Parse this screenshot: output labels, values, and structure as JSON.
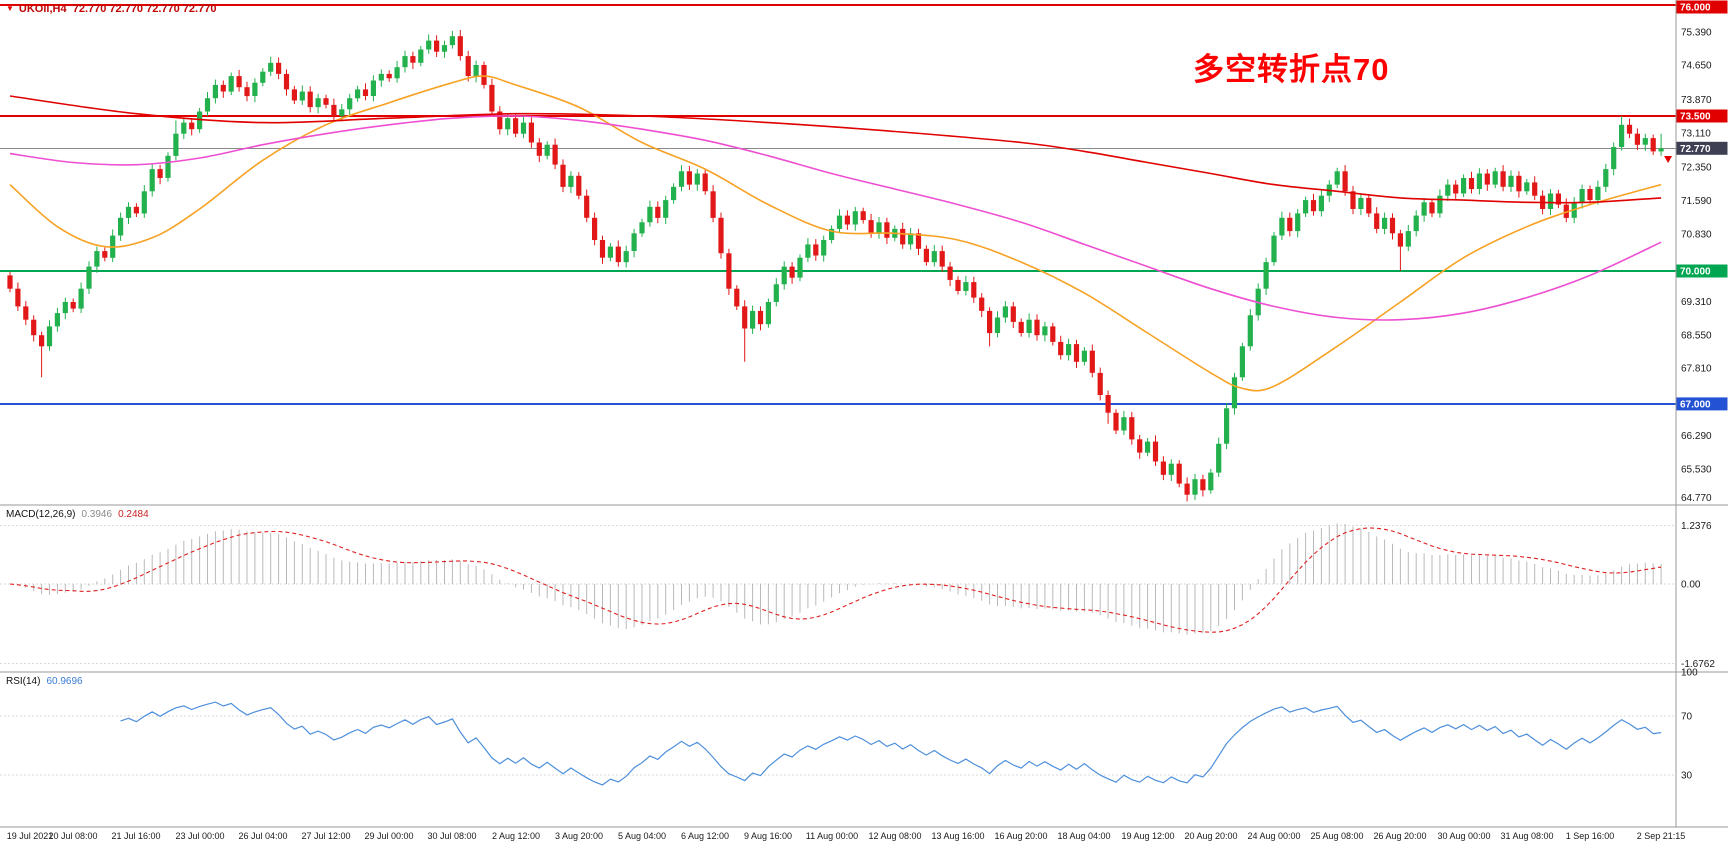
{
  "window": {
    "symbol_line": "UKOil,H4  72.770 72.770 72.770 72.770",
    "annotation": "多空转折点70"
  },
  "chart_data": {
    "type": "candlestick",
    "symbol": "UKOil",
    "timeframe": "H4",
    "current_price": 72.77,
    "first_open": 69.9,
    "candle_up_color": "#22b14c",
    "candle_down_color": "#e21818",
    "x_labels": [
      "19 Jul 2021",
      "20 Jul 08:00",
      "21 Jul 16:00",
      "23 Jul 00:00",
      "26 Jul 04:00",
      "27 Jul 12:00",
      "29 Jul 00:00",
      "30 Jul 08:00",
      "2 Aug 12:00",
      "3 Aug 20:00",
      "5 Aug 04:00",
      "6 Aug 12:00",
      "9 Aug 16:00",
      "11 Aug 00:00",
      "12 Aug 08:00",
      "13 Aug 16:00",
      "16 Aug 20:00",
      "18 Aug 04:00",
      "19 Aug 12:00",
      "20 Aug 20:00",
      "24 Aug 00:00",
      "25 Aug 08:00",
      "26 Aug 20:00",
      "30 Aug 00:00",
      "31 Aug 08:00",
      "1 Sep 16:00",
      "2 Sep 21:15"
    ],
    "label_every": 8,
    "closes": [
      69.6,
      69.2,
      68.9,
      68.55,
      68.3,
      68.75,
      69.05,
      69.3,
      69.15,
      69.6,
      70.1,
      70.45,
      70.3,
      70.8,
      71.2,
      71.45,
      71.3,
      71.8,
      72.3,
      72.1,
      72.6,
      73.1,
      73.35,
      73.2,
      73.6,
      73.9,
      74.2,
      74.05,
      74.4,
      74.15,
      73.95,
      74.25,
      74.5,
      74.7,
      74.45,
      74.1,
      73.85,
      74.05,
      73.7,
      73.9,
      73.75,
      73.5,
      73.65,
      73.9,
      74.1,
      73.95,
      74.3,
      74.45,
      74.35,
      74.6,
      74.85,
      74.7,
      75.0,
      75.2,
      74.95,
      75.1,
      75.3,
      74.85,
      74.4,
      74.65,
      74.2,
      73.6,
      73.2,
      73.45,
      73.1,
      73.35,
      72.9,
      72.6,
      72.85,
      72.4,
      71.9,
      72.15,
      71.7,
      71.2,
      70.7,
      70.3,
      70.55,
      70.2,
      70.45,
      70.85,
      71.1,
      71.45,
      71.2,
      71.6,
      71.9,
      72.25,
      71.95,
      72.2,
      71.8,
      71.2,
      70.4,
      69.6,
      69.2,
      68.7,
      69.1,
      68.8,
      69.3,
      69.7,
      70.1,
      69.85,
      70.3,
      70.6,
      70.35,
      70.7,
      70.95,
      71.25,
      71.05,
      71.35,
      71.15,
      70.85,
      71.1,
      70.75,
      70.95,
      70.6,
      70.85,
      70.5,
      70.2,
      70.45,
      70.1,
      69.8,
      69.55,
      69.75,
      69.4,
      69.1,
      68.6,
      68.95,
      69.2,
      68.85,
      68.6,
      68.9,
      68.55,
      68.75,
      68.4,
      68.1,
      68.35,
      67.95,
      68.2,
      67.7,
      67.2,
      66.8,
      66.4,
      66.7,
      66.2,
      65.9,
      66.15,
      65.7,
      65.4,
      65.65,
      65.2,
      64.95,
      65.3,
      65.05,
      65.45,
      66.1,
      66.9,
      67.6,
      68.3,
      69.0,
      69.6,
      70.2,
      70.8,
      71.2,
      70.9,
      71.3,
      71.6,
      71.35,
      71.7,
      71.95,
      72.25,
      71.8,
      71.4,
      71.65,
      71.3,
      70.95,
      71.2,
      70.85,
      70.55,
      70.9,
      71.25,
      71.55,
      71.3,
      71.7,
      71.95,
      71.75,
      72.1,
      71.85,
      72.2,
      71.95,
      72.25,
      71.9,
      72.15,
      71.8,
      72.0,
      71.7,
      71.4,
      71.75,
      71.5,
      71.2,
      71.55,
      71.85,
      71.6,
      71.9,
      72.3,
      72.8,
      73.3,
      73.1,
      72.85,
      73.0,
      72.7,
      72.77
    ],
    "wick_overrides": {
      "4": {
        "low": 67.6
      },
      "21": {
        "high": 73.4
      },
      "56": {
        "high": 75.42
      },
      "93": {
        "low": 67.95
      },
      "124": {
        "low": 68.3
      },
      "139": {
        "low": 66.55
      },
      "149": {
        "low": 64.8
      },
      "176": {
        "low": 70.0
      },
      "204": {
        "high": 73.5
      },
      "209": {
        "high": 73.1
      }
    },
    "levels": [
      {
        "label": "76.000",
        "price": 76.0,
        "color": "#e00000"
      },
      {
        "label": "73.500",
        "price": 73.5,
        "color": "#e00000"
      },
      {
        "label": "70.000",
        "price": 70.0,
        "color": "#00a651"
      },
      {
        "label": "67.000",
        "price": 67.0,
        "color": "#2353d4"
      }
    ],
    "current_line": {
      "label": "72.770",
      "price": 72.77,
      "color": "#8a8a8a",
      "badge_bg": "#3f3f54"
    },
    "price_ticks": [
      "75.390",
      "74.650",
      "73.870",
      "73.110",
      "72.350",
      "71.590",
      "70.830",
      "69.310",
      "68.550",
      "67.810",
      "66.290",
      "65.530",
      "64.770"
    ],
    "moving_averages": [
      {
        "name": "fast-ma-orange",
        "color": "#f7a224",
        "points": [
          [
            0,
            71.95
          ],
          [
            6,
            71.0
          ],
          [
            12,
            70.55
          ],
          [
            18,
            70.75
          ],
          [
            24,
            71.4
          ],
          [
            32,
            72.5
          ],
          [
            40,
            73.3
          ],
          [
            48,
            73.8
          ],
          [
            56,
            74.25
          ],
          [
            60,
            74.4
          ],
          [
            64,
            74.2
          ],
          [
            72,
            73.7
          ],
          [
            80,
            72.9
          ],
          [
            88,
            72.3
          ],
          [
            96,
            71.5
          ],
          [
            104,
            70.9
          ],
          [
            112,
            70.85
          ],
          [
            120,
            70.7
          ],
          [
            128,
            70.2
          ],
          [
            136,
            69.5
          ],
          [
            144,
            68.6
          ],
          [
            152,
            67.7
          ],
          [
            156,
            67.35
          ],
          [
            160,
            67.4
          ],
          [
            168,
            68.3
          ],
          [
            176,
            69.3
          ],
          [
            184,
            70.3
          ],
          [
            192,
            71.0
          ],
          [
            200,
            71.5
          ],
          [
            209,
            71.95
          ]
        ]
      },
      {
        "name": "mid-ma-magenta",
        "color": "#ee4fd2",
        "points": [
          [
            0,
            72.65
          ],
          [
            8,
            72.45
          ],
          [
            16,
            72.4
          ],
          [
            24,
            72.55
          ],
          [
            32,
            72.85
          ],
          [
            40,
            73.1
          ],
          [
            48,
            73.3
          ],
          [
            56,
            73.45
          ],
          [
            64,
            73.5
          ],
          [
            72,
            73.4
          ],
          [
            80,
            73.2
          ],
          [
            88,
            72.95
          ],
          [
            96,
            72.6
          ],
          [
            104,
            72.2
          ],
          [
            112,
            71.85
          ],
          [
            120,
            71.5
          ],
          [
            128,
            71.1
          ],
          [
            136,
            70.6
          ],
          [
            144,
            70.1
          ],
          [
            152,
            69.6
          ],
          [
            160,
            69.2
          ],
          [
            168,
            68.95
          ],
          [
            176,
            68.9
          ],
          [
            184,
            69.05
          ],
          [
            192,
            69.4
          ],
          [
            200,
            69.9
          ],
          [
            209,
            70.65
          ]
        ]
      },
      {
        "name": "slow-ma-red",
        "color": "#e00000",
        "points": [
          [
            0,
            73.95
          ],
          [
            16,
            73.55
          ],
          [
            32,
            73.35
          ],
          [
            48,
            73.45
          ],
          [
            64,
            73.55
          ],
          [
            80,
            73.5
          ],
          [
            96,
            73.35
          ],
          [
            112,
            73.15
          ],
          [
            128,
            72.9
          ],
          [
            136,
            72.7
          ],
          [
            144,
            72.45
          ],
          [
            152,
            72.2
          ],
          [
            160,
            71.95
          ],
          [
            168,
            71.8
          ],
          [
            176,
            71.65
          ],
          [
            184,
            71.6
          ],
          [
            192,
            71.55
          ],
          [
            200,
            71.55
          ],
          [
            209,
            71.65
          ]
        ]
      }
    ],
    "macd": {
      "title": "MACD(12,26,9)",
      "value_main": "0.3946",
      "value_signal": "0.2484",
      "params": {
        "fast": 12,
        "slow": 26,
        "signal": 9
      },
      "axis": [
        {
          "label": "1.2376",
          "value": 1.2376
        },
        {
          "label": "0.00",
          "value": 0
        },
        {
          "label": "-1.6762",
          "value": -1.6762
        }
      ],
      "histogram_color": "#b9b9b9",
      "signal_color": "#e02020"
    },
    "rsi": {
      "title": "RSI(14)",
      "value": "60.9696",
      "period": 14,
      "axis": [
        {
          "label": "100",
          "value": 100
        },
        {
          "label": "70",
          "value": 70
        },
        {
          "label": "30",
          "value": 30
        }
      ],
      "levels": [
        70,
        30
      ],
      "line_color": "#4d8fdb"
    }
  }
}
